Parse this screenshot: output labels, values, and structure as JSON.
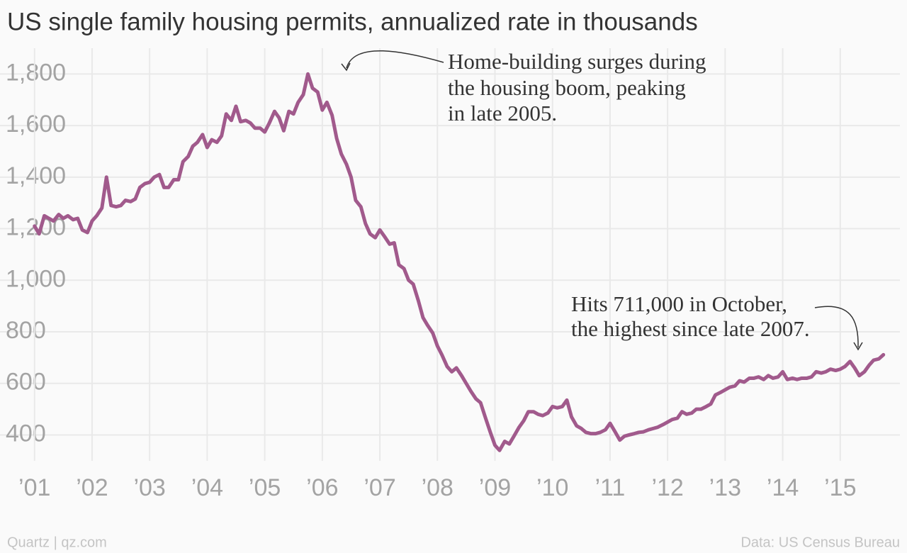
{
  "chart_data": {
    "type": "line",
    "title": "US single family housing permits, annualized rate in thousands",
    "color": "#a15a8c",
    "grid": true,
    "annotations": [
      {
        "lines": [
          "Home-building surges during",
          "the housing boom, peaking",
          "in late 2005."
        ]
      },
      {
        "lines": [
          "Hits 711,000 in October,",
          "the highest since late 2007."
        ]
      }
    ],
    "footer_left": "Quartz | qz.com",
    "footer_right": "Data: US Census Bureau",
    "xlim": [
      2000.4,
      2016.8
    ],
    "ylim": [
      305,
      1900
    ],
    "yticks": [
      400,
      600,
      800,
      {
        "value": 1000,
        "label": "1,000"
      },
      {
        "value": 1200,
        "label": "1,200"
      },
      {
        "value": 1400,
        "label": "1,400"
      },
      {
        "value": 1600,
        "label": "1,600"
      },
      {
        "value": 1800,
        "label": "1,800"
      }
    ],
    "xticks": [
      {
        "value": 2001,
        "label": "’01"
      },
      {
        "value": 2002,
        "label": "’02"
      },
      {
        "value": 2003,
        "label": "’03"
      },
      {
        "value": 2004,
        "label": "’04"
      },
      {
        "value": 2005,
        "label": "’05"
      },
      {
        "value": 2006,
        "label": "’06"
      },
      {
        "value": 2007,
        "label": "’07"
      },
      {
        "value": 2008,
        "label": "’08"
      },
      {
        "value": 2009,
        "label": "’09"
      },
      {
        "value": 2010,
        "label": "’10"
      },
      {
        "value": 2011,
        "label": "’11"
      },
      {
        "value": 2012,
        "label": "’12"
      },
      {
        "value": 2013,
        "label": "’13"
      },
      {
        "value": 2014,
        "label": "’14"
      },
      {
        "value": 2015,
        "label": "’15"
      }
    ],
    "x": [
      2001.0,
      2001.08,
      2001.17,
      2001.25,
      2001.33,
      2001.42,
      2001.5,
      2001.58,
      2001.67,
      2001.75,
      2001.83,
      2001.92,
      2002.0,
      2002.08,
      2002.17,
      2002.25,
      2002.33,
      2002.42,
      2002.5,
      2002.58,
      2002.67,
      2002.75,
      2002.83,
      2002.92,
      2003.0,
      2003.08,
      2003.17,
      2003.25,
      2003.33,
      2003.42,
      2003.5,
      2003.58,
      2003.67,
      2003.75,
      2003.83,
      2003.92,
      2004.0,
      2004.08,
      2004.17,
      2004.25,
      2004.33,
      2004.42,
      2004.5,
      2004.58,
      2004.67,
      2004.75,
      2004.83,
      2004.92,
      2005.0,
      2005.08,
      2005.17,
      2005.25,
      2005.33,
      2005.42,
      2005.5,
      2005.58,
      2005.67,
      2005.75,
      2005.83,
      2005.92,
      2006.0,
      2006.08,
      2006.17,
      2006.25,
      2006.33,
      2006.42,
      2006.5,
      2006.58,
      2006.67,
      2006.75,
      2006.83,
      2006.92,
      2007.0,
      2007.08,
      2007.17,
      2007.25,
      2007.33,
      2007.42,
      2007.5,
      2007.58,
      2007.67,
      2007.75,
      2007.83,
      2007.92,
      2008.0,
      2008.08,
      2008.17,
      2008.25,
      2008.33,
      2008.42,
      2008.5,
      2008.58,
      2008.67,
      2008.75,
      2008.83,
      2008.92,
      2009.0,
      2009.08,
      2009.17,
      2009.25,
      2009.33,
      2009.42,
      2009.5,
      2009.58,
      2009.67,
      2009.75,
      2009.83,
      2009.92,
      2010.0,
      2010.08,
      2010.17,
      2010.25,
      2010.33,
      2010.42,
      2010.5,
      2010.58,
      2010.67,
      2010.75,
      2010.83,
      2010.92,
      2011.0,
      2011.08,
      2011.17,
      2011.25,
      2011.33,
      2011.42,
      2011.5,
      2011.58,
      2011.67,
      2011.75,
      2011.83,
      2011.92,
      2012.0,
      2012.08,
      2012.17,
      2012.25,
      2012.33,
      2012.42,
      2012.5,
      2012.58,
      2012.67,
      2012.75,
      2012.83,
      2012.92,
      2013.0,
      2013.08,
      2013.17,
      2013.25,
      2013.33,
      2013.42,
      2013.5,
      2013.58,
      2013.67,
      2013.75,
      2013.83,
      2013.92,
      2014.0,
      2014.08,
      2014.17,
      2014.25,
      2014.33,
      2014.42,
      2014.5,
      2014.58,
      2014.67,
      2014.75,
      2014.83,
      2014.92,
      2015.0,
      2015.08,
      2015.17,
      2015.25,
      2015.33,
      2015.42,
      2015.5,
      2015.58,
      2015.67,
      2015.75
    ],
    "values": [
      1210,
      1180,
      1250,
      1240,
      1230,
      1255,
      1240,
      1250,
      1235,
      1240,
      1195,
      1185,
      1230,
      1250,
      1280,
      1400,
      1290,
      1285,
      1290,
      1310,
      1305,
      1315,
      1360,
      1375,
      1380,
      1400,
      1410,
      1360,
      1360,
      1390,
      1390,
      1460,
      1480,
      1520,
      1535,
      1565,
      1515,
      1545,
      1535,
      1560,
      1645,
      1620,
      1675,
      1615,
      1620,
      1610,
      1590,
      1590,
      1575,
      1610,
      1655,
      1630,
      1580,
      1655,
      1645,
      1690,
      1720,
      1800,
      1745,
      1730,
      1660,
      1690,
      1640,
      1550,
      1490,
      1450,
      1400,
      1310,
      1285,
      1220,
      1180,
      1165,
      1195,
      1170,
      1140,
      1145,
      1060,
      1045,
      1000,
      985,
      920,
      855,
      825,
      795,
      745,
      710,
      665,
      645,
      660,
      630,
      600,
      570,
      540,
      525,
      470,
      410,
      360,
      340,
      375,
      365,
      395,
      430,
      455,
      490,
      490,
      480,
      475,
      485,
      510,
      505,
      510,
      535,
      470,
      435,
      425,
      410,
      405,
      405,
      410,
      420,
      445,
      415,
      380,
      395,
      400,
      405,
      410,
      412,
      420,
      425,
      430,
      440,
      450,
      460,
      465,
      490,
      480,
      485,
      500,
      500,
      510,
      520,
      555,
      565,
      575,
      585,
      590,
      610,
      605,
      620,
      620,
      625,
      615,
      630,
      620,
      625,
      645,
      615,
      620,
      615,
      620,
      620,
      625,
      645,
      640,
      645,
      655,
      650,
      655,
      665,
      685,
      660,
      630,
      645,
      670,
      690,
      695,
      711
    ]
  }
}
